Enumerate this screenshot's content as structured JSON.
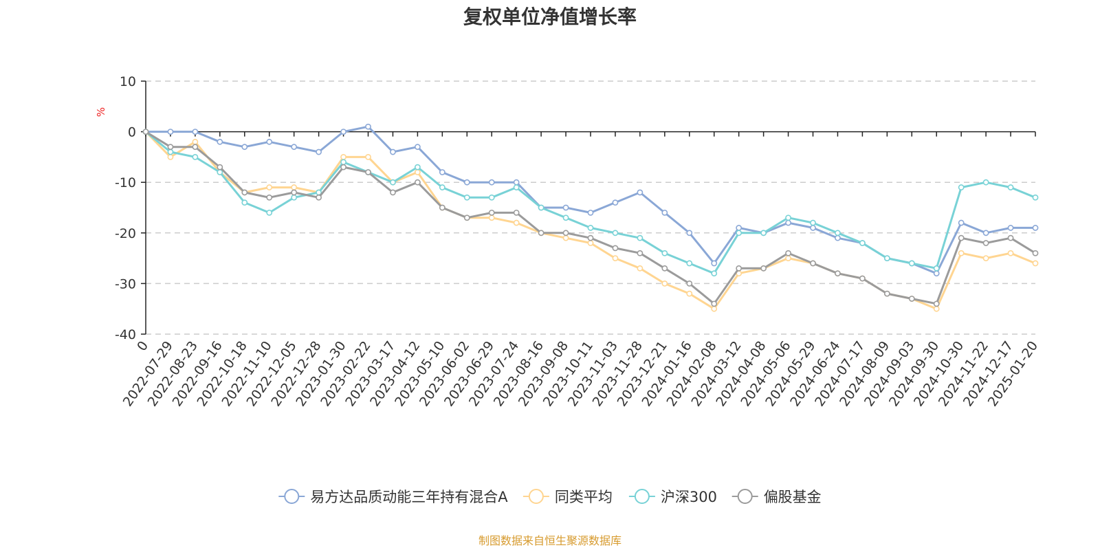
{
  "chart_data": {
    "type": "line",
    "title": "复权单位净值增长率",
    "ylabel": "%",
    "xlabel": "",
    "ylim": [
      -40,
      10
    ],
    "yticks": [
      "10",
      "0",
      "-10",
      "-20",
      "-30",
      "-40"
    ],
    "ytick_values": [
      10,
      0,
      -10,
      -20,
      -30,
      -40
    ],
    "categories": [
      "0",
      "2022-07-29",
      "2022-08-23",
      "2022-09-16",
      "2022-10-18",
      "2022-11-10",
      "2022-12-05",
      "2022-12-28",
      "2023-01-30",
      "2023-02-22",
      "2023-03-17",
      "2023-04-12",
      "2023-05-10",
      "2023-06-02",
      "2023-06-29",
      "2023-07-24",
      "2023-08-16",
      "2023-09-08",
      "2023-10-11",
      "2023-11-03",
      "2023-11-28",
      "2023-12-21",
      "2024-01-16",
      "2024-02-08",
      "2024-03-12",
      "2024-04-08",
      "2024-05-06",
      "2024-05-29",
      "2024-06-24",
      "2024-07-17",
      "2024-08-09",
      "2024-09-03",
      "2024-09-30",
      "2024-10-30",
      "2024-11-22",
      "2024-12-17",
      "2025-01-20"
    ],
    "series": [
      {
        "name": "易方达品质动能三年持有混合A",
        "color": "#8aa7d6",
        "values": [
          0,
          0,
          0,
          -2,
          -3,
          -2,
          -3,
          -4,
          0,
          1,
          -4,
          -3,
          -8,
          -10,
          -10,
          -10,
          -15,
          -15,
          -16,
          -14,
          -12,
          -16,
          -20,
          -26,
          -19,
          -20,
          -18,
          -19,
          -21,
          -22,
          -25,
          -26,
          -28,
          -18,
          -20,
          -19,
          -19
        ]
      },
      {
        "name": "同类平均",
        "color": "#ffd591",
        "values": [
          0,
          -5,
          -2,
          -8,
          -12,
          -11,
          -11,
          -12,
          -5,
          -5,
          -10,
          -8,
          -15,
          -17,
          -17,
          -18,
          -20,
          -21,
          -22,
          -25,
          -27,
          -30,
          -32,
          -35,
          -28,
          -27,
          -25,
          -26,
          -28,
          -29,
          -32,
          -33,
          -35,
          -24,
          -25,
          -24,
          -26
        ]
      },
      {
        "name": "沪深300",
        "color": "#78d2d6",
        "values": [
          0,
          -4,
          -5,
          -8,
          -14,
          -16,
          -13,
          -12,
          -6,
          -8,
          -10,
          -7,
          -11,
          -13,
          -13,
          -11,
          -15,
          -17,
          -19,
          -20,
          -21,
          -24,
          -26,
          -28,
          -20,
          -20,
          -17,
          -18,
          -20,
          -22,
          -25,
          -26,
          -27,
          -11,
          -10,
          -11,
          -13
        ]
      },
      {
        "name": "偏股基金",
        "color": "#9b9b9b",
        "values": [
          0,
          -3,
          -3,
          -7,
          -12,
          -13,
          -12,
          -13,
          -7,
          -8,
          -12,
          -10,
          -15,
          -17,
          -16,
          -16,
          -20,
          -20,
          -21,
          -23,
          -24,
          -27,
          -30,
          -34,
          -27,
          -27,
          -24,
          -26,
          -28,
          -29,
          -32,
          -33,
          -34,
          -21,
          -22,
          -21,
          -24
        ]
      }
    ],
    "legend_position": "bottom-center",
    "grid": true
  },
  "footer": {
    "source": "制图数据来自恒生聚源数据库"
  }
}
